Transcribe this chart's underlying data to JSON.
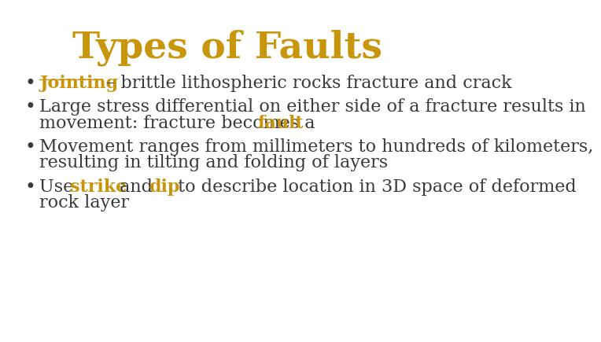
{
  "title": "Types of Faults",
  "title_color": "#C8960C",
  "title_fontsize": 34,
  "background_color": "#FFFFFF",
  "text_color": "#3A3A3A",
  "highlight_color": "#C8960C",
  "body_fontsize": 16,
  "bullets": [
    {
      "lines": [
        [
          {
            "text": "Jointing",
            "bold": true,
            "underline": true,
            "color": "#C8960C"
          },
          {
            "text": " – brittle lithospheric rocks fracture and crack",
            "bold": false,
            "color": "#3A3A3A"
          }
        ]
      ]
    },
    {
      "lines": [
        [
          {
            "text": "Large stress differential on either side of a fracture results in",
            "bold": false,
            "color": "#3A3A3A"
          }
        ],
        [
          {
            "text": "movement: fracture becomes a ",
            "bold": false,
            "color": "#3A3A3A"
          },
          {
            "text": "fault",
            "bold": true,
            "color": "#C8960C"
          }
        ]
      ]
    },
    {
      "lines": [
        [
          {
            "text": "Movement ranges from millimeters to hundreds of kilometers,",
            "bold": false,
            "color": "#3A3A3A"
          }
        ],
        [
          {
            "text": "resulting in tilting and folding of layers",
            "bold": false,
            "color": "#3A3A3A"
          }
        ]
      ]
    },
    {
      "lines": [
        [
          {
            "text": "Use ",
            "bold": false,
            "color": "#3A3A3A"
          },
          {
            "text": "strike",
            "bold": true,
            "color": "#C8960C"
          },
          {
            "text": " and ",
            "bold": false,
            "color": "#3A3A3A"
          },
          {
            "text": "dip",
            "bold": true,
            "color": "#C8960C"
          },
          {
            "text": " to describe location in 3D space of deformed",
            "bold": false,
            "color": "#3A3A3A"
          }
        ],
        [
          {
            "text": "rock layer",
            "bold": false,
            "color": "#3A3A3A"
          }
        ]
      ]
    }
  ]
}
